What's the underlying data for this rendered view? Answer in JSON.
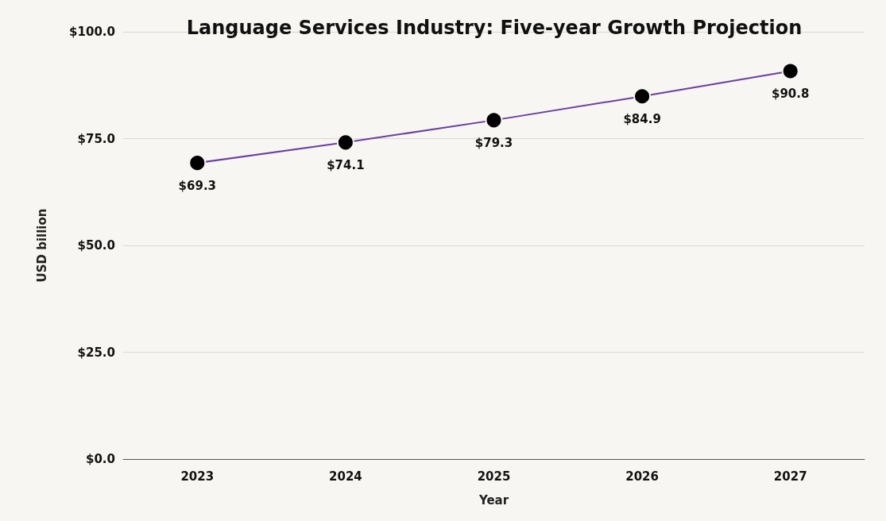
{
  "chart_data": {
    "type": "line",
    "title": "Language Services Industry: Five-year Growth Projection",
    "xlabel": "Year",
    "ylabel": "USD billion",
    "categories": [
      "2023",
      "2024",
      "2025",
      "2026",
      "2027"
    ],
    "series": [
      {
        "color": "#6b3fa0",
        "values": [
          69.3,
          74.1,
          79.3,
          84.9,
          90.8
        ],
        "value_labels": [
          "$69.3",
          "$74.1",
          "$79.3",
          "$84.9",
          "$90.8"
        ]
      }
    ],
    "ylim": [
      0,
      100
    ],
    "yticks": [
      {
        "value": 0,
        "label": "$0.0"
      },
      {
        "value": 25,
        "label": "$25.0"
      },
      {
        "value": 50,
        "label": "$50.0"
      },
      {
        "value": 75,
        "label": "$75.0"
      },
      {
        "value": 100,
        "label": "$100.0"
      }
    ],
    "grid": "y",
    "marker": "circle",
    "line_style": "solid"
  }
}
